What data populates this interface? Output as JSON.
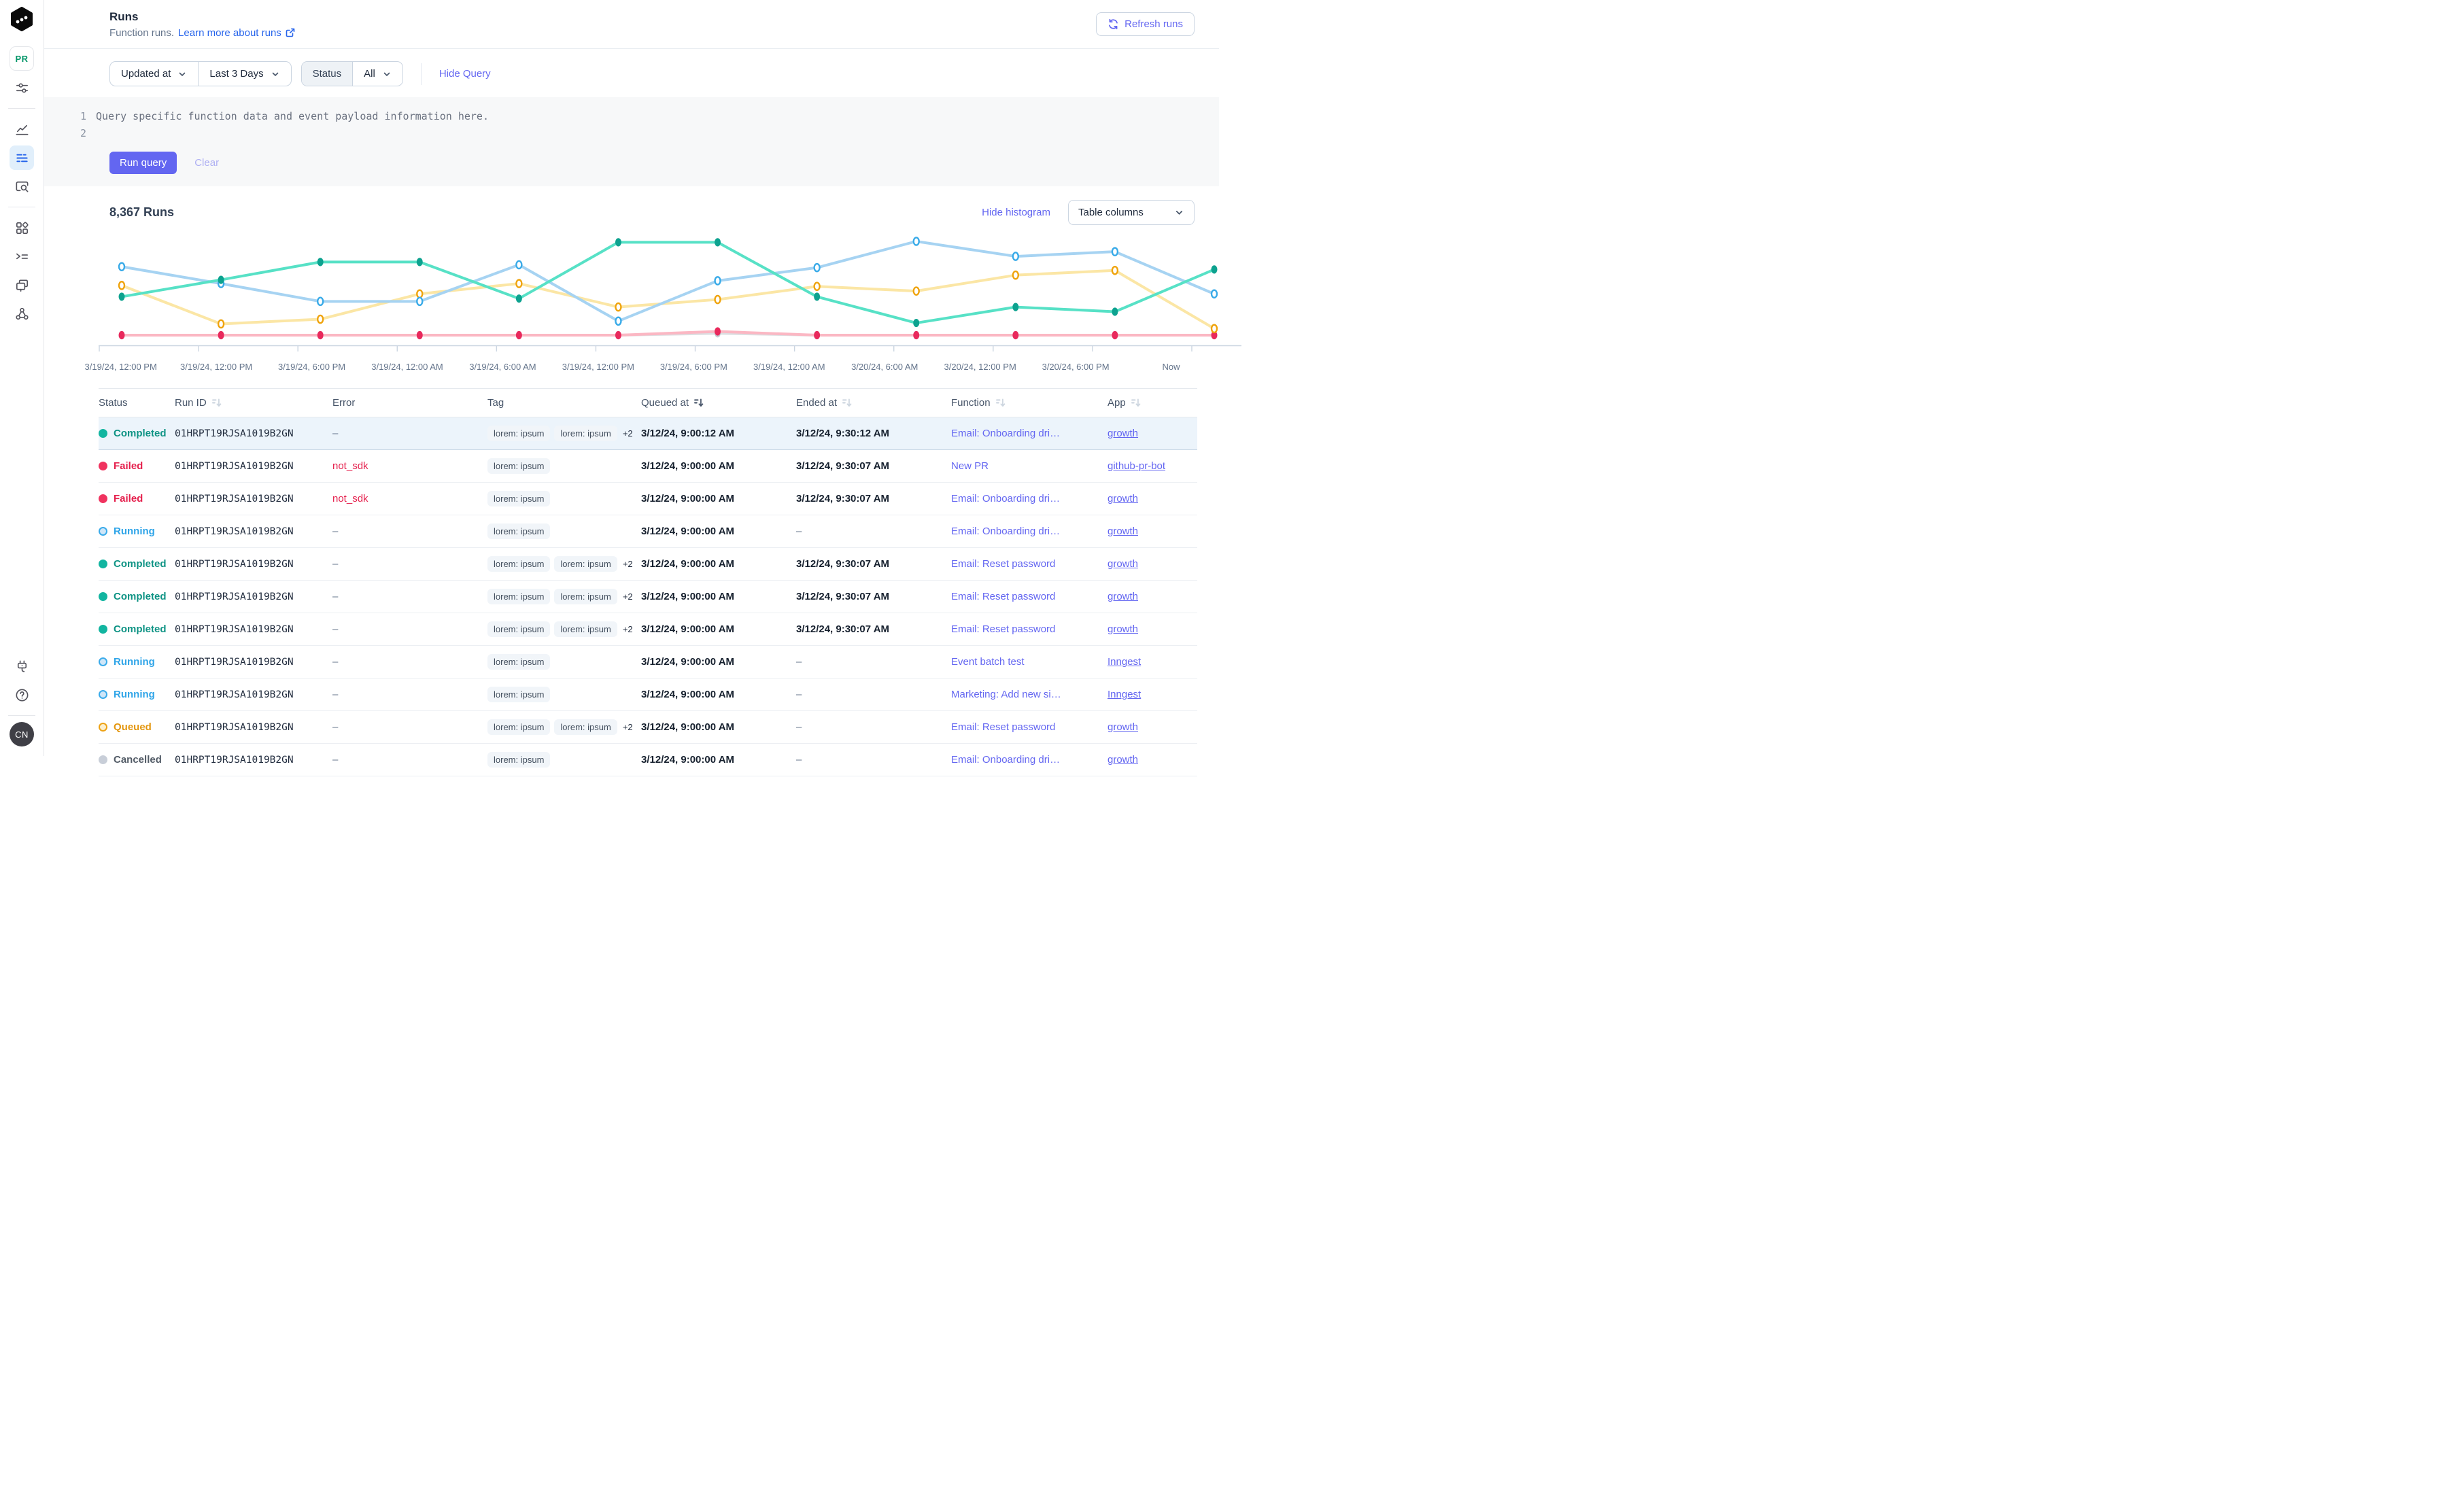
{
  "sidebar": {
    "workspace_badge": "PR",
    "user_initials": "CN"
  },
  "header": {
    "title": "Runs",
    "subtitle": "Function runs.",
    "learn_more_label": "Learn more about runs",
    "refresh_label": "Refresh runs"
  },
  "filters": {
    "field": "Updated at",
    "range": "Last 3 Days",
    "status_label": "Status",
    "status_value": "All",
    "hide_query_label": "Hide Query"
  },
  "query": {
    "line_numbers": [
      "1",
      "2"
    ],
    "placeholder": "Query specific function data and event payload information here.",
    "run_label": "Run query",
    "clear_label": "Clear"
  },
  "results": {
    "count_label": "8,367 Runs",
    "hide_histogram_label": "Hide histogram",
    "table_columns_label": "Table columns"
  },
  "chart_data": {
    "type": "line",
    "title": "",
    "xlabel": "",
    "ylabel": "",
    "ylim": [
      0,
      105
    ],
    "grid": false,
    "legend": false,
    "x_labels": [
      "3/19/24, 12:00 PM",
      "3/19/24, 12:00 PM",
      "3/19/24, 6:00 PM",
      "3/19/24, 12:00 AM",
      "3/19/24, 6:00 AM",
      "3/19/24, 12:00 PM",
      "3/19/24, 6:00 PM",
      "3/19/24, 12:00 AM",
      "3/20/24, 6:00 AM",
      "3/20/24, 12:00 PM",
      "3/20/24, 6:00 PM",
      "Now"
    ],
    "series": [
      {
        "name": "Cancelled",
        "line_color": "#dcdee1",
        "point_color": "#c5cad1",
        "point_style": "solid",
        "values": [
          0,
          0,
          0,
          0,
          0,
          0,
          2,
          0,
          0,
          0,
          0,
          0
        ]
      },
      {
        "name": "Failed",
        "line_color": "#fbb7c3",
        "point_color": "#e9295c",
        "point_style": "solid",
        "values": [
          0,
          0,
          0,
          0,
          0,
          0,
          4,
          0,
          0,
          0,
          0,
          0
        ]
      },
      {
        "name": "Queued",
        "line_color": "#fbe6a5",
        "point_color": "#efa30c",
        "point_style": "hollow",
        "values": [
          53,
          12,
          17,
          44,
          55,
          30,
          38,
          52,
          47,
          64,
          69,
          7
        ]
      },
      {
        "name": "Running",
        "line_color": "#a6d3f2",
        "point_color": "#38aae8",
        "point_style": "hollow",
        "values": [
          73,
          55,
          36,
          36,
          75,
          15,
          58,
          72,
          100,
          84,
          89,
          44
        ]
      },
      {
        "name": "Completed",
        "line_color": "#57e1c6",
        "point_color": "#0da28f",
        "point_style": "solid",
        "values": [
          41,
          59,
          78,
          78,
          39,
          99,
          99,
          41,
          13,
          30,
          25,
          70
        ]
      }
    ]
  },
  "status_styles": {
    "completed": {
      "dot_fill": "#12b5a0",
      "dot_border": "#12b5a0",
      "text": "#0e9384"
    },
    "failed": {
      "dot_fill": "#f0335f",
      "dot_border": "#f0335f",
      "text": "#e5204d"
    },
    "running": {
      "dot_fill": "#cfe6f8",
      "dot_border": "#3aabea",
      "text": "#30a5e8"
    },
    "queued": {
      "dot_fill": "#fcf0cf",
      "dot_border": "#eda215",
      "text": "#e3960e"
    },
    "cancelled": {
      "dot_fill": "#c8ced8",
      "dot_border": "#c8ced8",
      "text": "#525b66"
    }
  },
  "table": {
    "columns": [
      {
        "label": "Status",
        "sort": null
      },
      {
        "label": "Run ID",
        "sort": "inactive"
      },
      {
        "label": "Error",
        "sort": null
      },
      {
        "label": "Tag",
        "sort": null
      },
      {
        "label": "Queued at",
        "sort": "active"
      },
      {
        "label": "Ended at",
        "sort": "inactive"
      },
      {
        "label": "Function",
        "sort": "inactive"
      },
      {
        "label": "App",
        "sort": "inactive"
      }
    ],
    "rows": [
      {
        "status_key": "completed",
        "status_label": "Completed",
        "run_id": "01HRPT19RJSA1019B2GN",
        "error": "–",
        "tags": [
          "lorem: ipsum",
          "lorem: ipsum"
        ],
        "more_tags": "+2",
        "queued_at": "3/12/24, 9:00:12 AM",
        "ended_at": "3/12/24, 9:30:12 AM",
        "function": "Email: Onboarding dri…",
        "app": "growth",
        "selected": true
      },
      {
        "status_key": "failed",
        "status_label": "Failed",
        "run_id": "01HRPT19RJSA1019B2GN",
        "error": "not_sdk",
        "tags": [
          "lorem: ipsum"
        ],
        "more_tags": "",
        "queued_at": "3/12/24, 9:00:00 AM",
        "ended_at": "3/12/24, 9:30:07 AM",
        "function": "New PR",
        "app": "github-pr-bot",
        "selected": false
      },
      {
        "status_key": "failed",
        "status_label": "Failed",
        "run_id": "01HRPT19RJSA1019B2GN",
        "error": "not_sdk",
        "tags": [
          "lorem: ipsum"
        ],
        "more_tags": "",
        "queued_at": "3/12/24, 9:00:00 AM",
        "ended_at": "3/12/24, 9:30:07 AM",
        "function": "Email: Onboarding dri…",
        "app": "growth",
        "selected": false
      },
      {
        "status_key": "running",
        "status_label": "Running",
        "run_id": "01HRPT19RJSA1019B2GN",
        "error": "–",
        "tags": [
          "lorem: ipsum"
        ],
        "more_tags": "",
        "queued_at": "3/12/24, 9:00:00 AM",
        "ended_at": "–",
        "function": "Email: Onboarding dri…",
        "app": "growth",
        "selected": false
      },
      {
        "status_key": "completed",
        "status_label": "Completed",
        "run_id": "01HRPT19RJSA1019B2GN",
        "error": "–",
        "tags": [
          "lorem: ipsum",
          "lorem: ipsum"
        ],
        "more_tags": "+2",
        "queued_at": "3/12/24, 9:00:00 AM",
        "ended_at": "3/12/24, 9:30:07 AM",
        "function": "Email: Reset password",
        "app": "growth",
        "selected": false
      },
      {
        "status_key": "completed",
        "status_label": "Completed",
        "run_id": "01HRPT19RJSA1019B2GN",
        "error": "–",
        "tags": [
          "lorem: ipsum",
          "lorem: ipsum"
        ],
        "more_tags": "+2",
        "queued_at": "3/12/24, 9:00:00 AM",
        "ended_at": "3/12/24, 9:30:07 AM",
        "function": "Email: Reset password",
        "app": "growth",
        "selected": false
      },
      {
        "status_key": "completed",
        "status_label": "Completed",
        "run_id": "01HRPT19RJSA1019B2GN",
        "error": "–",
        "tags": [
          "lorem: ipsum",
          "lorem: ipsum"
        ],
        "more_tags": "+2",
        "queued_at": "3/12/24, 9:00:00 AM",
        "ended_at": "3/12/24, 9:30:07 AM",
        "function": "Email: Reset password",
        "app": "growth",
        "selected": false
      },
      {
        "status_key": "running",
        "status_label": "Running",
        "run_id": "01HRPT19RJSA1019B2GN",
        "error": "–",
        "tags": [
          "lorem: ipsum"
        ],
        "more_tags": "",
        "queued_at": "3/12/24, 9:00:00 AM",
        "ended_at": "–",
        "function": "Event batch test",
        "app": "Inngest",
        "selected": false
      },
      {
        "status_key": "running",
        "status_label": "Running",
        "run_id": "01HRPT19RJSA1019B2GN",
        "error": "–",
        "tags": [
          "lorem: ipsum"
        ],
        "more_tags": "",
        "queued_at": "3/12/24, 9:00:00 AM",
        "ended_at": "–",
        "function": "Marketing: Add new si…",
        "app": "Inngest",
        "selected": false
      },
      {
        "status_key": "queued",
        "status_label": "Queued",
        "run_id": "01HRPT19RJSA1019B2GN",
        "error": "–",
        "tags": [
          "lorem: ipsum",
          "lorem: ipsum"
        ],
        "more_tags": "+2",
        "queued_at": "3/12/24, 9:00:00 AM",
        "ended_at": "–",
        "function": "Email: Reset password",
        "app": "growth",
        "selected": false
      },
      {
        "status_key": "cancelled",
        "status_label": "Cancelled",
        "run_id": "01HRPT19RJSA1019B2GN",
        "error": "–",
        "tags": [
          "lorem: ipsum"
        ],
        "more_tags": "",
        "queued_at": "3/12/24, 9:00:00 AM",
        "ended_at": "–",
        "function": "Email: Onboarding dri…",
        "app": "growth",
        "selected": false
      }
    ]
  },
  "colors": {
    "accent": "#6366f1",
    "link": "#2563eb",
    "axis": "#cbd5e1"
  }
}
